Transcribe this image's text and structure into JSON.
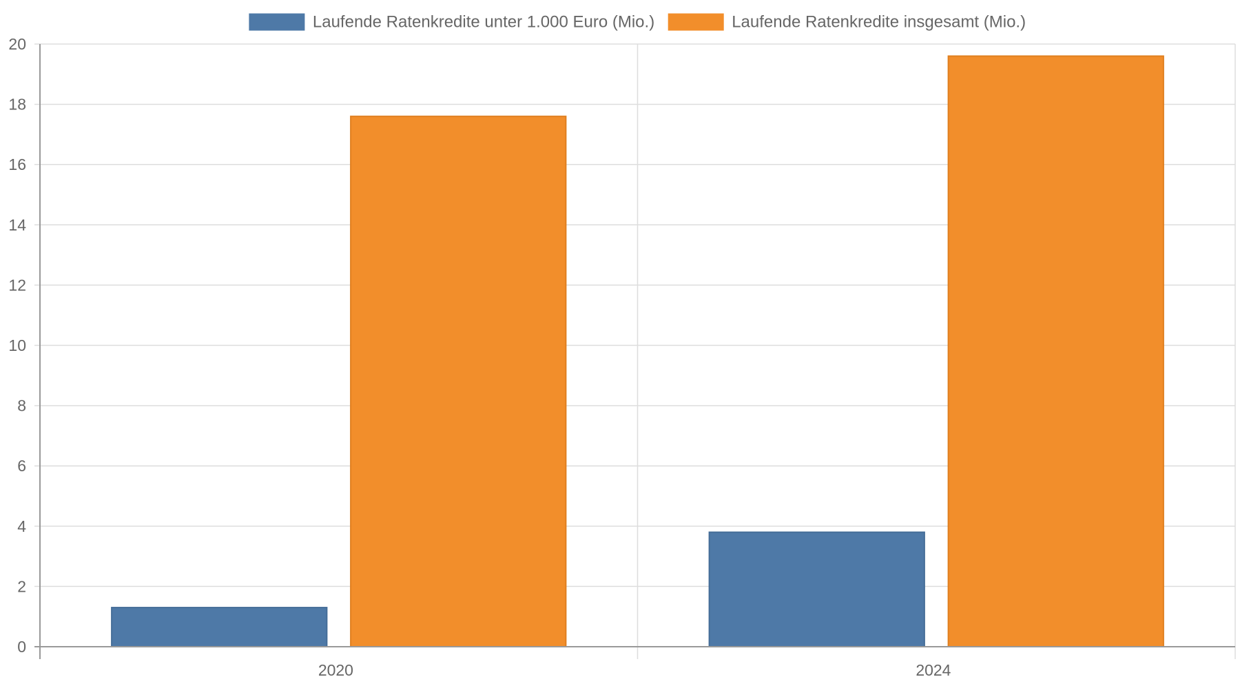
{
  "chart_data": {
    "type": "bar",
    "title": "",
    "xlabel": "",
    "ylabel": "",
    "categories": [
      "2020",
      "2024"
    ],
    "series": [
      {
        "name": "Laufende Ratenkredite unter 1.000 Euro (Mio.)",
        "color": "#4e79a7",
        "values": [
          1.3,
          3.8
        ]
      },
      {
        "name": "Laufende Ratenkredite insgesamt (Mio.)",
        "color": "#f28e2b",
        "values": [
          17.6,
          19.6
        ]
      }
    ],
    "ylim": [
      0,
      20
    ],
    "yticks": [
      0,
      2,
      4,
      6,
      8,
      10,
      12,
      14,
      16,
      18,
      20
    ],
    "grid": true,
    "legend_position": "top-center"
  }
}
